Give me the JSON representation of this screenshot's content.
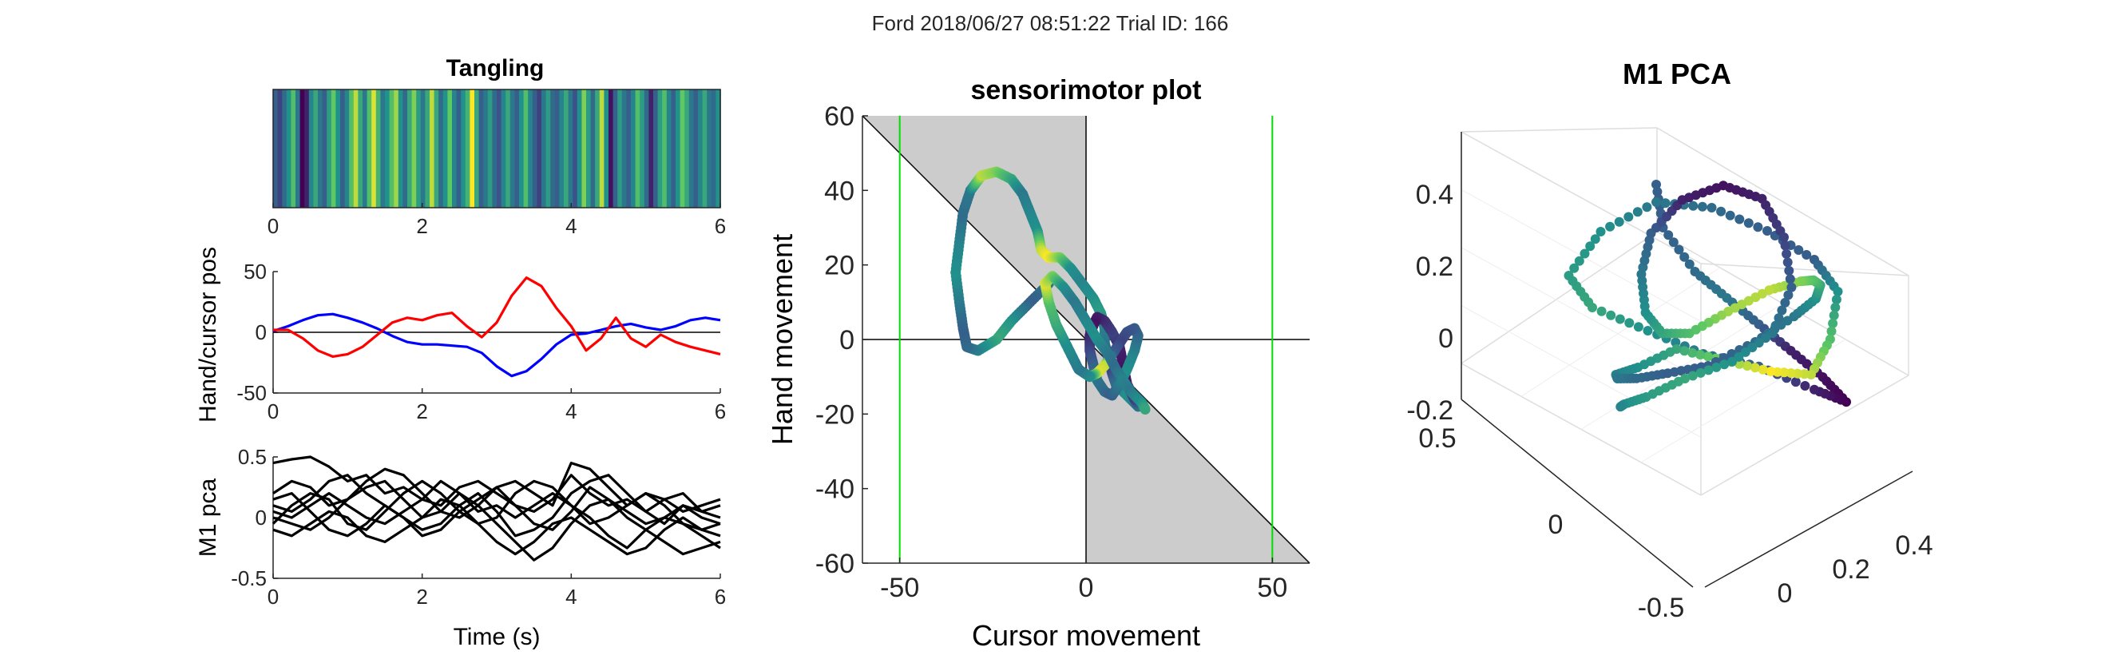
{
  "figure": {
    "suptitle": "Ford 2018/06/27 08:51:22 Trial ID: 166"
  },
  "colors": {
    "hand": "#0000ff",
    "cursor": "#ff0000",
    "pca": "#000000",
    "target": "#00dd00",
    "shade": "#cccccc",
    "viridis": [
      "#440154",
      "#3b528b",
      "#21918c",
      "#5ec962",
      "#fde725"
    ]
  },
  "chart_data": [
    {
      "id": "tangling",
      "type": "heatmap",
      "title": "Tangling",
      "xlim": [
        0,
        6
      ],
      "xticks": [
        "0",
        "2",
        "4",
        "6"
      ],
      "values": [
        0.3,
        0.2,
        0.35,
        0.5,
        0.7,
        0.4,
        0.0,
        0.1,
        0.45,
        0.6,
        0.4,
        0.3,
        0.55,
        0.75,
        0.5,
        0.3,
        0.45,
        0.7,
        0.9,
        0.6,
        0.4,
        0.7,
        0.95,
        0.65,
        0.4,
        0.5,
        0.7,
        0.85,
        0.5,
        0.35,
        0.6,
        0.8,
        0.55,
        0.4,
        0.6,
        0.9,
        0.6,
        0.35,
        0.5,
        0.75,
        0.45,
        0.3,
        0.5,
        0.65,
        1.0,
        0.6,
        0.3,
        0.4,
        0.55,
        0.35,
        0.25,
        0.45,
        0.6,
        0.4,
        0.3,
        0.5,
        0.7,
        0.45,
        0.3,
        0.2,
        0.4,
        0.55,
        0.35,
        0.3,
        0.45,
        0.6,
        0.4,
        0.25,
        0.5,
        0.8,
        0.55,
        0.35,
        0.6,
        0.9,
        0.5,
        0.05,
        0.3,
        0.55,
        0.4,
        0.3,
        0.45,
        0.7,
        0.55,
        0.35,
        0.1,
        0.3,
        0.55,
        0.7,
        0.45,
        0.3,
        0.5,
        0.75,
        0.6,
        0.4,
        0.3,
        0.45,
        0.6,
        0.4,
        0.35,
        0.5
      ]
    },
    {
      "id": "handcursor",
      "type": "line",
      "ylabel": "Hand/cursor pos",
      "xlim": [
        0,
        6
      ],
      "ylim": [
        -50,
        50
      ],
      "xticks": [
        "0",
        "2",
        "4",
        "6"
      ],
      "yticks": [
        "-50",
        "0",
        "50"
      ],
      "x": [
        0,
        0.2,
        0.4,
        0.6,
        0.8,
        1.0,
        1.2,
        1.4,
        1.6,
        1.8,
        2.0,
        2.2,
        2.4,
        2.6,
        2.8,
        3.0,
        3.2,
        3.4,
        3.6,
        3.8,
        4.0,
        4.2,
        4.4,
        4.6,
        4.8,
        5.0,
        5.2,
        5.4,
        5.6,
        5.8,
        6.0
      ],
      "series": [
        {
          "color_key": "hand",
          "values": [
            1,
            5,
            10,
            14,
            15,
            12,
            8,
            3,
            -3,
            -8,
            -10,
            -10,
            -11,
            -12,
            -17,
            -28,
            -36,
            -32,
            -22,
            -10,
            -2,
            -1,
            2,
            5,
            7,
            4,
            2,
            5,
            10,
            12,
            10
          ]
        },
        {
          "color_key": "cursor",
          "values": [
            2,
            2,
            -5,
            -15,
            -20,
            -18,
            -12,
            -2,
            8,
            12,
            10,
            14,
            16,
            5,
            -4,
            8,
            30,
            45,
            38,
            20,
            5,
            -15,
            -5,
            12,
            -5,
            -12,
            -2,
            -8,
            -12,
            -15,
            -18
          ]
        }
      ]
    },
    {
      "id": "m1pca",
      "type": "line",
      "ylabel": "M1 pca",
      "xlabel": "Time (s)",
      "xlim": [
        0,
        6
      ],
      "ylim": [
        -0.5,
        0.5
      ],
      "xticks": [
        "0",
        "2",
        "4",
        "6"
      ],
      "yticks": [
        "-0.5",
        "0",
        "0.5"
      ],
      "x": [
        0,
        0.25,
        0.5,
        0.75,
        1.0,
        1.25,
        1.5,
        1.75,
        2.0,
        2.25,
        2.5,
        2.75,
        3.0,
        3.25,
        3.5,
        3.75,
        4.0,
        4.25,
        4.5,
        4.75,
        5.0,
        5.25,
        5.5,
        5.75,
        6.0
      ],
      "series": [
        {
          "values": [
            0.45,
            0.48,
            0.5,
            0.42,
            0.3,
            0.35,
            0.2,
            0.25,
            0.15,
            0.1,
            0.25,
            0.3,
            0.2,
            0.1,
            0.05,
            0.15,
            0.35,
            0.2,
            0.1,
            0.15,
            0.05,
            -0.05,
            0.1,
            0.05,
            0.0
          ]
        },
        {
          "values": [
            0.2,
            0.3,
            0.25,
            0.1,
            0.15,
            0.3,
            0.4,
            0.35,
            0.2,
            0.05,
            0.0,
            0.1,
            0.25,
            0.3,
            0.2,
            0.1,
            0.45,
            0.4,
            0.25,
            0.1,
            0.2,
            0.15,
            0.05,
            0.1,
            0.15
          ]
        },
        {
          "values": [
            0.1,
            0.05,
            0.15,
            0.3,
            0.35,
            0.2,
            0.1,
            0.0,
            -0.1,
            -0.05,
            0.1,
            0.2,
            0.05,
            -0.15,
            -0.1,
            0.0,
            0.2,
            0.3,
            0.35,
            0.2,
            0.05,
            0.15,
            0.2,
            0.05,
            0.1
          ]
        },
        {
          "values": [
            0.0,
            -0.05,
            -0.1,
            0.0,
            0.15,
            0.25,
            0.3,
            0.15,
            0.0,
            0.05,
            0.2,
            0.1,
            -0.05,
            -0.2,
            -0.35,
            -0.25,
            -0.05,
            0.1,
            0.15,
            0.05,
            -0.05,
            0.0,
            0.1,
            0.0,
            -0.05
          ]
        },
        {
          "values": [
            -0.05,
            0.1,
            0.2,
            0.15,
            -0.05,
            -0.1,
            0.05,
            0.2,
            0.3,
            0.2,
            0.05,
            -0.05,
            0.0,
            0.2,
            0.3,
            0.25,
            0.1,
            0.0,
            -0.15,
            -0.25,
            -0.1,
            0.0,
            -0.05,
            -0.1,
            -0.15
          ]
        },
        {
          "values": [
            0.15,
            0.2,
            0.05,
            -0.1,
            -0.15,
            -0.05,
            0.1,
            0.0,
            -0.15,
            -0.1,
            0.05,
            0.15,
            0.25,
            0.1,
            -0.05,
            -0.1,
            0.05,
            0.25,
            0.15,
            0.0,
            -0.1,
            -0.2,
            -0.3,
            -0.25,
            -0.2
          ]
        },
        {
          "values": [
            -0.1,
            -0.15,
            -0.05,
            0.05,
            0.0,
            -0.15,
            -0.2,
            -0.1,
            0.0,
            0.15,
            0.1,
            -0.05,
            -0.2,
            -0.3,
            -0.2,
            -0.05,
            0.0,
            -0.1,
            -0.2,
            -0.3,
            -0.25,
            -0.1,
            0.0,
            -0.1,
            -0.05
          ]
        },
        {
          "values": [
            0.05,
            0.0,
            0.1,
            0.2,
            0.1,
            0.0,
            -0.05,
            0.05,
            0.15,
            0.3,
            0.2,
            0.05,
            0.1,
            0.0,
            0.1,
            0.2,
            0.1,
            -0.05,
            0.0,
            0.1,
            0.2,
            0.1,
            -0.05,
            -0.15,
            -0.25
          ]
        }
      ]
    },
    {
      "id": "sensorimotor",
      "type": "scatter",
      "title": "sensorimotor plot",
      "xlabel": "Cursor movement",
      "ylabel": "Hand movement",
      "xlim": [
        -60,
        60
      ],
      "ylim": [
        -60,
        60
      ],
      "xticks": [
        "-50",
        "0",
        "50"
      ],
      "yticks": [
        "60",
        "40",
        "20",
        "0",
        "-20",
        "-40",
        "-60"
      ],
      "target_lines_x": [
        -50,
        50
      ],
      "path": [
        [
          -10,
          15
        ],
        [
          -15,
          10
        ],
        [
          -20,
          5
        ],
        [
          -24,
          0
        ],
        [
          -29,
          -3
        ],
        [
          -32,
          -2
        ],
        [
          -33,
          3
        ],
        [
          -34,
          10
        ],
        [
          -35,
          18
        ],
        [
          -34,
          26
        ],
        [
          -33,
          34
        ],
        [
          -31,
          40
        ],
        [
          -28,
          44
        ],
        [
          -24,
          45
        ],
        [
          -20,
          43
        ],
        [
          -17,
          39
        ],
        [
          -15,
          34
        ],
        [
          -13,
          29
        ],
        [
          -12,
          24
        ],
        [
          -10,
          22
        ],
        [
          -7,
          22
        ],
        [
          -4,
          19
        ],
        [
          -1,
          15
        ],
        [
          2,
          11
        ],
        [
          4,
          7
        ],
        [
          5,
          3
        ],
        [
          5,
          -1
        ],
        [
          6,
          -5
        ],
        [
          7,
          -9
        ],
        [
          8,
          -12
        ],
        [
          11,
          -15
        ],
        [
          14,
          -18
        ],
        [
          13,
          -16
        ],
        [
          11,
          -12
        ],
        [
          10,
          -7
        ],
        [
          9,
          -2
        ],
        [
          7,
          2
        ],
        [
          5,
          5
        ],
        [
          3,
          6
        ],
        [
          2,
          4
        ],
        [
          1,
          1
        ],
        [
          1,
          -3
        ],
        [
          2,
          -7
        ],
        [
          3,
          -11
        ],
        [
          5,
          -14
        ],
        [
          7,
          -15
        ],
        [
          9,
          -12
        ],
        [
          11,
          -8
        ],
        [
          13,
          -3
        ],
        [
          14,
          1
        ],
        [
          13,
          3
        ],
        [
          11,
          2
        ],
        [
          9,
          -1
        ],
        [
          7,
          -4
        ],
        [
          5,
          -7
        ],
        [
          3,
          -9
        ],
        [
          1,
          -10
        ],
        [
          -2,
          -8
        ],
        [
          -4,
          -4
        ],
        [
          -6,
          0
        ],
        [
          -8,
          4
        ],
        [
          -10,
          10
        ],
        [
          -11,
          15
        ],
        [
          -9,
          17
        ],
        [
          -6,
          14
        ],
        [
          -3,
          10
        ],
        [
          0,
          5
        ],
        [
          3,
          0
        ],
        [
          6,
          -4
        ],
        [
          8,
          -8
        ],
        [
          10,
          -11
        ],
        [
          12,
          -14
        ],
        [
          15,
          -17
        ],
        [
          16,
          -19
        ]
      ],
      "path_colors": [
        0.4,
        0.3,
        0.5,
        0.6,
        0.45,
        0.35,
        0.3,
        0.4,
        0.5,
        0.45,
        0.35,
        0.4,
        0.9,
        0.8,
        0.6,
        0.4,
        0.45,
        0.5,
        0.9,
        1.0,
        0.8,
        0.5,
        0.45,
        0.5,
        0.55,
        0.45,
        0.4,
        0.3,
        0.2,
        0.35,
        0.5,
        0.4,
        0.2,
        0.1,
        0.05,
        0.1,
        0.2,
        0.15,
        0.1,
        0.05,
        0.1,
        0.2,
        0.3,
        0.4,
        0.35,
        0.3,
        0.4,
        0.5,
        0.45,
        0.35,
        0.3,
        0.25,
        0.2,
        0.3,
        0.9,
        0.95,
        0.5,
        0.4,
        0.45,
        0.5,
        0.6,
        0.7,
        0.95,
        0.8,
        0.5,
        0.4,
        0.45,
        0.5,
        0.4,
        0.35,
        0.45,
        0.4,
        0.5,
        0.6
      ]
    },
    {
      "id": "m1pca3d",
      "type": "scatter",
      "title": "M1 PCA",
      "zticks": [
        "0.4",
        "0.2",
        "0",
        "-0.2"
      ],
      "yticks": [
        "0.5",
        "0",
        "-0.5"
      ],
      "xticks": [
        "0.4",
        "0.2",
        "0"
      ],
      "path": [
        [
          0.0,
          0.1,
          0.45
        ],
        [
          0.05,
          0.15,
          0.35
        ],
        [
          0.1,
          0.05,
          0.2
        ],
        [
          0.15,
          -0.05,
          0.1
        ],
        [
          0.2,
          -0.15,
          0.0
        ],
        [
          0.25,
          -0.25,
          -0.1
        ],
        [
          0.3,
          -0.35,
          -0.2
        ],
        [
          0.35,
          -0.4,
          -0.28
        ],
        [
          0.3,
          -0.3,
          -0.22
        ],
        [
          0.2,
          -0.15,
          -0.12
        ],
        [
          0.1,
          0.0,
          -0.05
        ],
        [
          0.0,
          0.15,
          0.05
        ],
        [
          -0.1,
          0.3,
          0.15
        ],
        [
          -0.15,
          0.35,
          0.25
        ],
        [
          -0.1,
          0.25,
          0.35
        ],
        [
          0.0,
          0.1,
          0.4
        ],
        [
          0.1,
          -0.05,
          0.35
        ],
        [
          0.2,
          -0.2,
          0.25
        ],
        [
          0.3,
          -0.3,
          0.15
        ],
        [
          0.35,
          -0.35,
          0.05
        ],
        [
          0.38,
          -0.25,
          -0.05
        ],
        [
          0.4,
          -0.1,
          -0.1
        ],
        [
          0.35,
          0.05,
          -0.05
        ],
        [
          0.25,
          0.15,
          0.0
        ],
        [
          0.15,
          0.25,
          0.05
        ],
        [
          0.05,
          0.3,
          0.0
        ],
        [
          -0.05,
          0.25,
          -0.05
        ],
        [
          -0.1,
          0.15,
          -0.1
        ],
        [
          -0.12,
          0.0,
          -0.15
        ],
        [
          -0.1,
          -0.15,
          -0.18
        ],
        [
          -0.05,
          -0.3,
          -0.2
        ],
        [
          0.05,
          -0.4,
          -0.15
        ],
        [
          0.15,
          -0.45,
          -0.08
        ],
        [
          0.25,
          -0.4,
          0.0
        ],
        [
          0.32,
          -0.3,
          0.08
        ],
        [
          0.38,
          -0.15,
          0.15
        ],
        [
          0.42,
          0.0,
          0.2
        ],
        [
          0.4,
          0.15,
          0.22
        ],
        [
          0.32,
          0.25,
          0.18
        ],
        [
          0.22,
          0.3,
          0.12
        ],
        [
          0.12,
          0.28,
          0.1
        ],
        [
          0.02,
          0.2,
          0.12
        ],
        [
          -0.06,
          0.08,
          0.18
        ],
        [
          -0.1,
          -0.05,
          0.25
        ],
        [
          -0.08,
          -0.2,
          0.3
        ],
        [
          0.0,
          -0.3,
          0.32
        ],
        [
          0.1,
          -0.35,
          0.28
        ],
        [
          0.2,
          -0.3,
          0.2
        ],
        [
          0.28,
          -0.2,
          0.1
        ],
        [
          0.3,
          -0.05,
          0.02
        ],
        [
          0.25,
          0.1,
          -0.02
        ],
        [
          0.15,
          0.2,
          -0.05
        ],
        [
          0.05,
          0.25,
          -0.1
        ],
        [
          -0.05,
          0.2,
          -0.15
        ],
        [
          -0.12,
          0.1,
          -0.2
        ]
      ],
      "path_colors": [
        0.3,
        0.3,
        0.35,
        0.4,
        0.3,
        0.1,
        0.05,
        0.0,
        0.1,
        0.3,
        0.4,
        0.5,
        0.6,
        0.55,
        0.5,
        0.4,
        0.35,
        0.3,
        0.3,
        0.5,
        0.7,
        0.9,
        1.0,
        0.8,
        0.6,
        0.5,
        0.45,
        0.4,
        0.35,
        0.3,
        0.3,
        0.35,
        0.4,
        0.5,
        0.6,
        0.7,
        0.8,
        0.9,
        0.85,
        0.7,
        0.6,
        0.5,
        0.4,
        0.3,
        0.1,
        0.05,
        0.1,
        0.2,
        0.3,
        0.4,
        0.5,
        0.6,
        0.55,
        0.5,
        0.45
      ]
    }
  ]
}
